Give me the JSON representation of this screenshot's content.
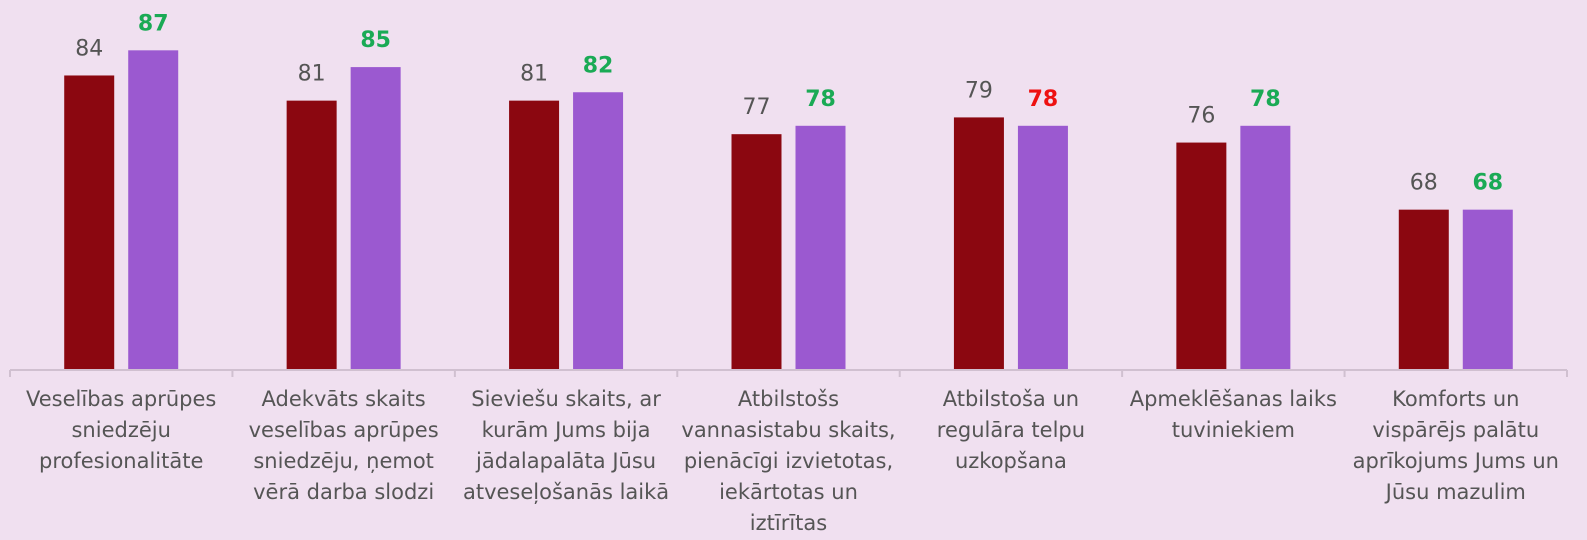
{
  "chart_data": {
    "type": "bar",
    "categories": [
      "Veselības aprūpes sniedzēju profesionalitāte",
      "Adekvāts skaits veselības aprūpes sniedzēju, ņemot vērā darba slodzi",
      "Sieviešu skaits, ar kurām Jums bija jādalapalāta Jūsu atveseļošanās laikā",
      "Atbilstošs vannasistabu skaits, pienācīgi izvietotas, iekārtotas un iztīrītas",
      "Atbilstoša un regulāra telpu uzkopšana",
      "Apmeklēšanas laiks tuviniekiem",
      "Komforts un vispārējs palātu aprīkojums Jums un Jūsu mazulim"
    ],
    "series": [
      {
        "color": "#8b0710",
        "label_color": "#555555",
        "values": [
          84,
          81,
          81,
          77,
          79,
          76,
          68
        ]
      },
      {
        "color": "#9b59d0",
        "label_up_color": "#1aaa55",
        "label_down_color": "#ee1111",
        "values": [
          87,
          85,
          82,
          78,
          78,
          78,
          68
        ]
      }
    ],
    "ylim": [
      49,
      93
    ]
  }
}
